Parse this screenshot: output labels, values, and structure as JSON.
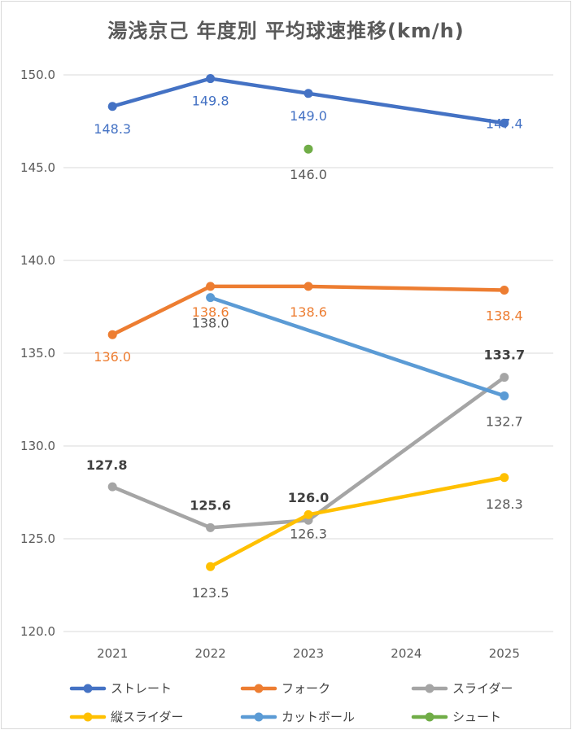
{
  "chart_data": {
    "type": "line",
    "title": "湯浅京己 年度別 平均球速推移(km/h)",
    "categories": [
      "2021",
      "2022",
      "2023",
      "2024",
      "2025"
    ],
    "ylim": [
      120.0,
      150.0
    ],
    "yticks": [
      "120.0",
      "125.0",
      "130.0",
      "135.0",
      "140.0",
      "145.0",
      "150.0"
    ],
    "grid": true,
    "legend_position": "bottom",
    "series": [
      {
        "name": "ストレート",
        "color": "#4472c4",
        "values": [
          148.3,
          149.8,
          149.0,
          null,
          147.4
        ],
        "labels": [
          "148.3",
          "149.8",
          "149.0",
          "",
          "147.4"
        ],
        "label_color": "#4472c4",
        "label_bold": false
      },
      {
        "name": "フォーク",
        "color": "#ed7d31",
        "values": [
          136.0,
          138.6,
          138.6,
          null,
          138.4
        ],
        "labels": [
          "136.0",
          "138.6",
          "138.6",
          "",
          "138.4"
        ],
        "label_color": "#ed7d31",
        "label_bold": false
      },
      {
        "name": "スライダー",
        "color": "#a5a5a5",
        "values": [
          127.8,
          125.6,
          126.0,
          null,
          133.7
        ],
        "labels": [
          "127.8",
          "125.6",
          "126.0",
          "",
          "133.7"
        ],
        "label_color": "#404040",
        "label_bold": true
      },
      {
        "name": "縦スライダー",
        "color": "#ffc000",
        "values": [
          null,
          123.5,
          126.3,
          null,
          128.3
        ],
        "labels": [
          "",
          "123.5",
          "126.3",
          "",
          "128.3"
        ],
        "label_color": "#595959",
        "label_bold": false
      },
      {
        "name": "カットボール",
        "color": "#5b9bd5",
        "values": [
          null,
          138.0,
          null,
          null,
          132.7
        ],
        "labels": [
          "",
          "138.0",
          "",
          "",
          "132.7"
        ],
        "label_color": "#595959",
        "label_bold": false
      },
      {
        "name": "シュート",
        "color": "#70ad47",
        "values": [
          null,
          null,
          146.0,
          null,
          null
        ],
        "labels": [
          "",
          "",
          "146.0",
          "",
          ""
        ],
        "label_color": "#595959",
        "label_bold": false
      }
    ]
  }
}
